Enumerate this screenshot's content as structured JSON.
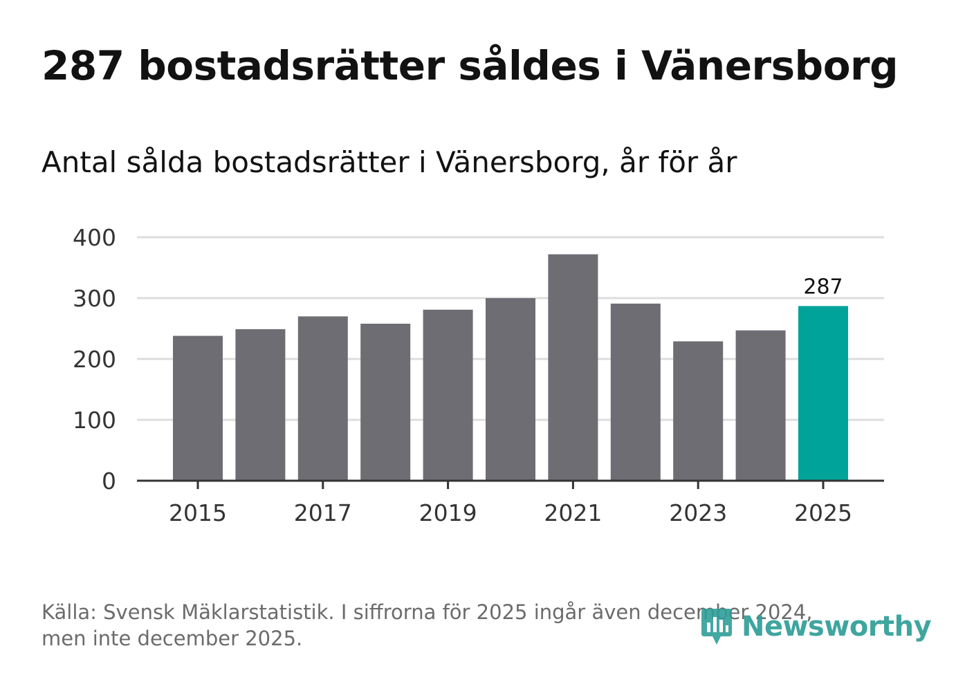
{
  "header": {
    "title": "287 bostadsrätter såldes i Vänersborg",
    "subtitle": "Antal sålda bostadsrätter i Vänersborg, år för år"
  },
  "footer": {
    "source_line1": "Källa: Svensk Mäklarstatistik. I siffrorna för 2025 ingår även december 2024,",
    "source_line2": "men inte december 2025."
  },
  "brand": {
    "name": "Newsworthy",
    "icon": "newsworthy-logo-icon",
    "color": "#2f9e97"
  },
  "colors": {
    "bar": "#6e6d73",
    "highlight": "#00a39a",
    "grid": "#dddddd",
    "axis": "#333333",
    "text": "#333333"
  },
  "chart_data": {
    "type": "bar",
    "title": "Antal sålda bostadsrätter i Vänersborg, år för år",
    "xlabel": "",
    "ylabel": "",
    "categories": [
      "2015",
      "2016",
      "2017",
      "2018",
      "2019",
      "2020",
      "2021",
      "2022",
      "2023",
      "2024",
      "2025"
    ],
    "values": [
      238,
      249,
      270,
      258,
      281,
      300,
      372,
      291,
      229,
      247,
      287
    ],
    "highlight_index": 10,
    "data_labels": [
      {
        "index": 10,
        "text": "287"
      }
    ],
    "x_tick_labels": [
      "2015",
      "2017",
      "2019",
      "2021",
      "2023",
      "2025"
    ],
    "y_ticks": [
      0,
      100,
      200,
      300,
      400
    ],
    "ylim": [
      0,
      400
    ],
    "grid": true
  }
}
